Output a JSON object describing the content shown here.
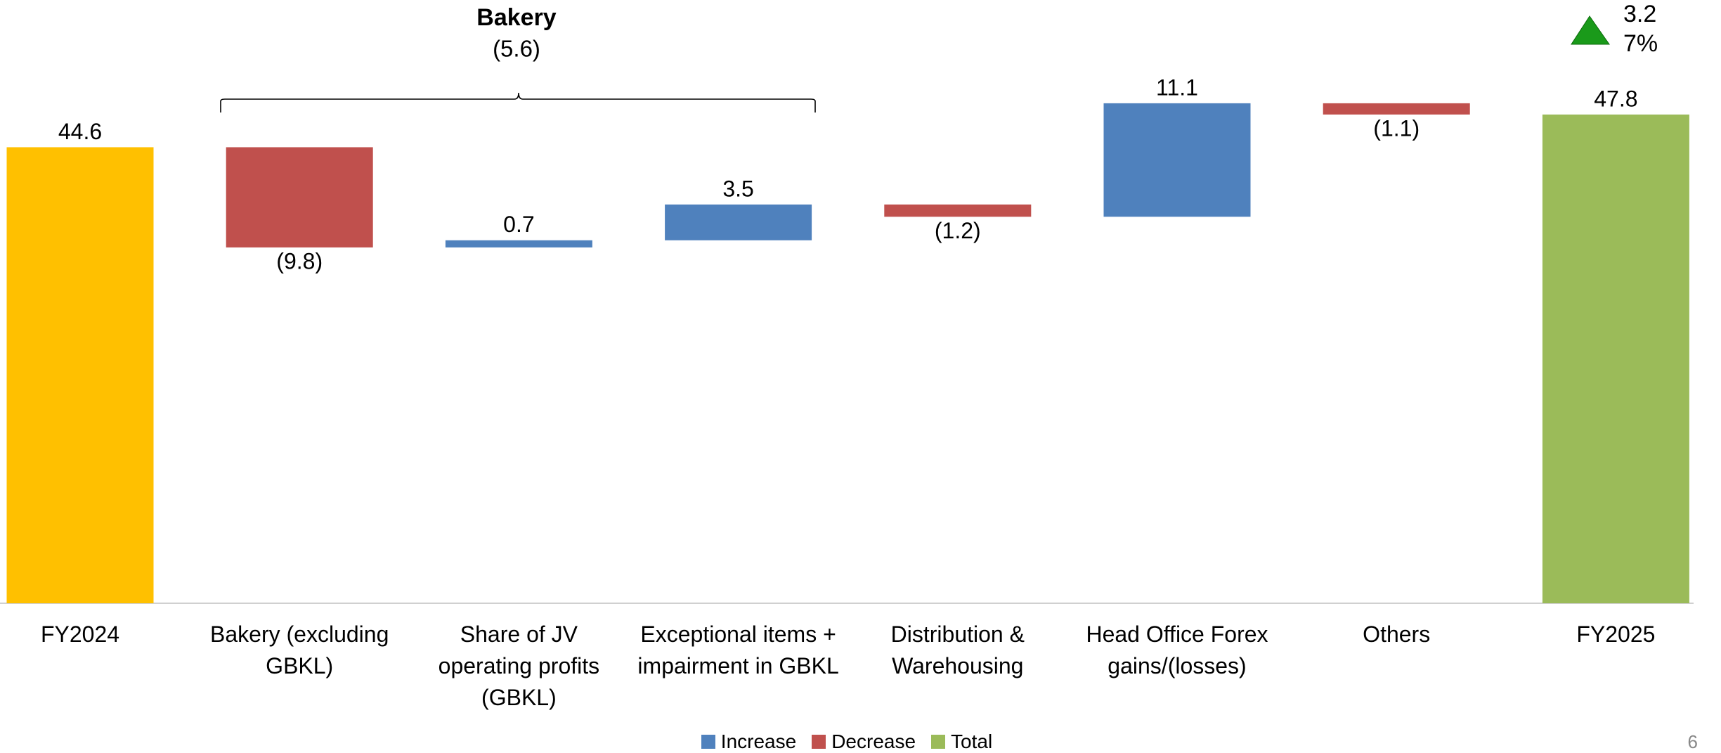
{
  "chart_data": {
    "type": "waterfall",
    "categories": [
      "FY2024",
      "Bakery (excluding GBKL)",
      "Share of JV operating profits (GBKL)",
      "Exceptional items + impairment in GBKL",
      "Distribution & Warehousing",
      "Head Office Forex gains/(losses)",
      "Others",
      "FY2025"
    ],
    "values": [
      44.6,
      -9.8,
      0.7,
      3.5,
      -1.2,
      11.1,
      -1.1,
      47.8
    ],
    "value_labels": [
      "44.6",
      "(9.8)",
      "0.7",
      "3.5",
      "(1.2)",
      "11.1",
      "(1.1)",
      "47.8"
    ],
    "totals": [
      true,
      false,
      false,
      false,
      false,
      false,
      false,
      true
    ],
    "colors": [
      "#ffc000",
      "#c0504d",
      "#4f81bd",
      "#4f81bd",
      "#c0504d",
      "#4f81bd",
      "#c0504d",
      "#9bbb59"
    ],
    "ylim": [
      0,
      59
    ],
    "legend": [
      {
        "name": "Increase",
        "color": "#4f81bd"
      },
      {
        "name": "Decrease",
        "color": "#c0504d"
      },
      {
        "name": "Total",
        "color": "#9bbb59"
      }
    ],
    "annotations": {
      "group_title": "Bakery",
      "group_value": "(5.6)",
      "change_value": "3.2",
      "change_percent": "7%"
    },
    "page_number": "6"
  }
}
